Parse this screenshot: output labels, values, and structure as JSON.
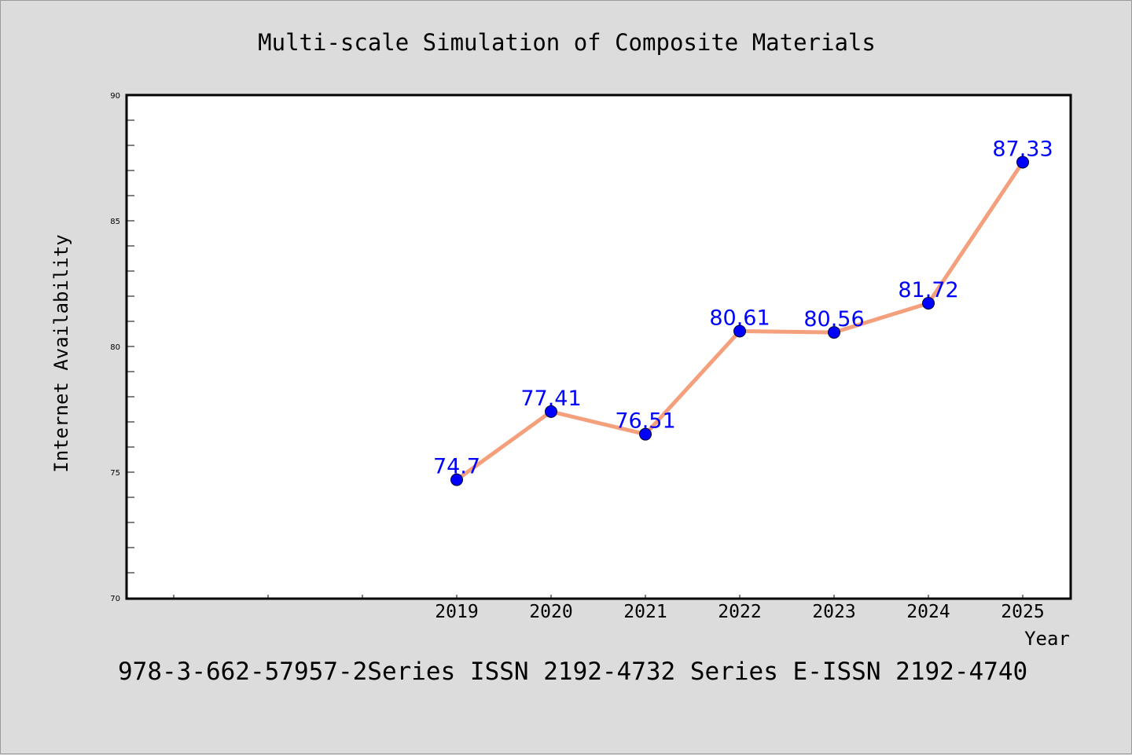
{
  "footer": "978-3-662-57957-2Series ISSN 2192-4732 Series E-ISSN 2192-4740",
  "colors": {
    "background": "#dcdcdc",
    "plot_background": "#ffffff",
    "line": "#f4a07c",
    "marker": "#0000ff",
    "data_label": "#0000ff"
  },
  "chart_data": {
    "type": "line",
    "title": "Multi-scale Simulation of Composite Materials",
    "xlabel": "Year",
    "ylabel": "Internet Availability",
    "categories": [
      "2019",
      "2020",
      "2021",
      "2022",
      "2023",
      "2024",
      "2025"
    ],
    "values": [
      74.7,
      77.41,
      76.51,
      80.61,
      80.56,
      81.72,
      87.33
    ],
    "data_labels": [
      "74.7",
      "77.41",
      "76.51",
      "80.61",
      "80.56",
      "81.72",
      "87.33"
    ],
    "ylim": [
      70,
      90
    ],
    "yticks": [
      "70",
      "75",
      "80",
      "85",
      "90"
    ],
    "grid": false,
    "legend": "none"
  }
}
